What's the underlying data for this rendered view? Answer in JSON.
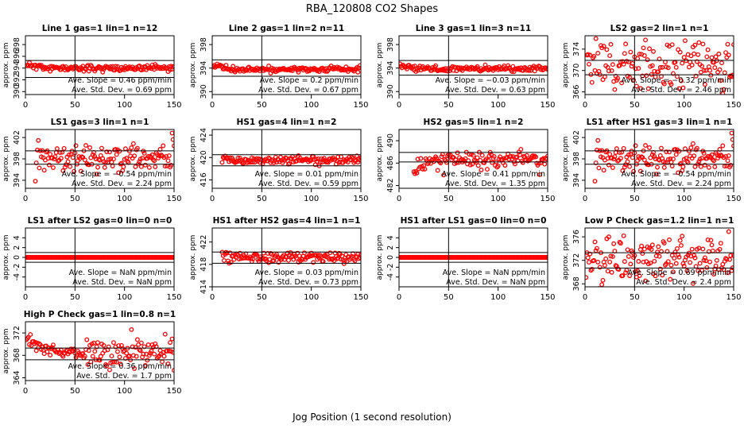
{
  "title": "RBA_120808  CO2 Shapes",
  "xlabel": "Jog Position (1 second resolution)",
  "ylabel": "approx. ppm",
  "colors": {
    "points": "#ff0000",
    "axis": "#000000"
  },
  "slope_label": "Ave. Slope =",
  "slope_unit": "ppm/min",
  "std_label": "Ave. Std. Dev. =",
  "std_unit": "ppm",
  "chart_data": [
    {
      "type": "scatter",
      "title": "Line 1 gas=1 lin=1 n=12",
      "xlim": [
        0,
        150
      ],
      "xticks": [
        0,
        50,
        100,
        150
      ],
      "ylim": [
        389.5,
        399.5
      ],
      "yticks": [
        390,
        392,
        394,
        396,
        398
      ],
      "hlines": [
        392.4,
        395.3
      ],
      "vline": 50,
      "slope": "0.46",
      "std": "0.69",
      "pattern": "flat",
      "base": 394.0,
      "noise": 0.25,
      "start": 1,
      "end": 150,
      "seed": 11
    },
    {
      "type": "scatter",
      "title": "Line 2 gas=1 lin=2 n=11",
      "xlim": [
        0,
        150
      ],
      "xticks": [
        0,
        50,
        100,
        150
      ],
      "ylim": [
        389.5,
        399.5
      ],
      "yticks": [
        390,
        394,
        398
      ],
      "hlines": [
        392.6,
        395.4
      ],
      "vline": 50,
      "slope": "0.2",
      "std": "0.67",
      "pattern": "flat",
      "base": 393.8,
      "noise": 0.25,
      "start": 1,
      "end": 150,
      "seed": 12
    },
    {
      "type": "scatter",
      "title": "Line 3 gas=1 lin=3 n=11",
      "xlim": [
        0,
        150
      ],
      "xticks": [
        0,
        50,
        100,
        150
      ],
      "ylim": [
        389.5,
        399.5
      ],
      "yticks": [
        390,
        394,
        398
      ],
      "hlines": [
        392.8,
        395.3
      ],
      "vline": 50,
      "slope": "−0.03",
      "std": "0.63",
      "pattern": "flat",
      "base": 393.9,
      "noise": 0.25,
      "start": 1,
      "end": 150,
      "seed": 13
    },
    {
      "type": "scatter",
      "title": "LS2 gas=2 lin=1 n=1",
      "xlim": [
        0,
        150
      ],
      "xticks": [
        0,
        50,
        100,
        150
      ],
      "ylim": [
        365.5,
        376.5
      ],
      "yticks": [
        366,
        370,
        374
      ],
      "hlines": [
        369.2,
        371.9
      ],
      "vline": 50,
      "slope": "−0.32",
      "std": "2.46",
      "pattern": "noisy",
      "base": 371.0,
      "noise": 2.3,
      "start": 1,
      "end": 150,
      "seed": 14
    },
    {
      "type": "scatter",
      "title": "LS1 gas=3 lin=1 n=1",
      "xlim": [
        0,
        150
      ],
      "xticks": [
        0,
        50,
        100,
        150
      ],
      "ylim": [
        392.5,
        403.5
      ],
      "yticks": [
        394,
        398,
        402
      ],
      "hlines": [
        397.0,
        399.5
      ],
      "vline": 50,
      "slope": "−0.54",
      "std": "2.24",
      "pattern": "noisy",
      "base": 398.2,
      "noise": 1.2,
      "start": 10,
      "end": 150,
      "seed": 15
    },
    {
      "type": "scatter",
      "title": "HS1 gas=4 lin=1 n=2",
      "xlim": [
        0,
        150
      ],
      "xticks": [
        0,
        50,
        100,
        150
      ],
      "ylim": [
        414.5,
        425
      ],
      "yticks": [
        416,
        420,
        424
      ],
      "hlines": [
        418.5,
        420.5
      ],
      "vline": 50,
      "slope": "0.01",
      "std": "0.59",
      "pattern": "flat",
      "base": 419.5,
      "noise": 0.35,
      "start": 10,
      "end": 150,
      "seed": 16
    },
    {
      "type": "scatter",
      "title": "HS2 gas=5 lin=1 n=2",
      "xlim": [
        0,
        150
      ],
      "xticks": [
        0,
        50,
        100,
        150
      ],
      "ylim": [
        481.5,
        492
      ],
      "yticks": [
        482,
        486,
        490
      ],
      "hlines": [
        486.2,
        487.9
      ],
      "vline": 50,
      "slope": "0.41",
      "std": "1.35",
      "pattern": "rise",
      "base": 486.8,
      "noise": 0.6,
      "start": 15,
      "end": 150,
      "seed": 17
    },
    {
      "type": "scatter",
      "title": "LS1 after HS1 gas=3 lin=1 n=1",
      "xlim": [
        0,
        150
      ],
      "xticks": [
        0,
        50,
        100,
        150
      ],
      "ylim": [
        392.5,
        403.5
      ],
      "yticks": [
        394,
        398,
        402
      ],
      "hlines": [
        397.0,
        399.5
      ],
      "vline": 50,
      "slope": "−0.54",
      "std": "2.24",
      "pattern": "noisy",
      "base": 398.2,
      "noise": 1.2,
      "start": 10,
      "end": 150,
      "seed": 15
    },
    {
      "type": "scatter",
      "title": "LS1 after LS2 gas=0 lin=0 n=0",
      "xlim": [
        0,
        150
      ],
      "xticks": [
        0,
        50,
        100,
        150
      ],
      "ylim": [
        -6,
        6
      ],
      "yticks": [
        -4,
        -2,
        0,
        2,
        4
      ],
      "hlines": [
        -1,
        1
      ],
      "vline": 50,
      "slope": "NaN",
      "std": "NaN",
      "pattern": "zero",
      "base": 0,
      "noise": 0,
      "start": 1,
      "end": 150,
      "seed": 18
    },
    {
      "type": "scatter",
      "title": "HS1 after HS2 gas=4 lin=1 n=1",
      "xlim": [
        0,
        150
      ],
      "xticks": [
        0,
        50,
        100,
        150
      ],
      "ylim": [
        414,
        424.5
      ],
      "yticks": [
        414,
        418,
        422
      ],
      "hlines": [
        418.2,
        420.2
      ],
      "vline": 50,
      "slope": "0.03",
      "std": "0.73",
      "pattern": "flat",
      "base": 419.3,
      "noise": 0.5,
      "start": 10,
      "end": 150,
      "seed": 19
    },
    {
      "type": "scatter",
      "title": "HS1 after LS1 gas=0 lin=0 n=0",
      "xlim": [
        0,
        150
      ],
      "xticks": [
        0,
        50,
        100,
        150
      ],
      "ylim": [
        -6,
        6
      ],
      "yticks": [
        -4,
        -2,
        0,
        2,
        4
      ],
      "hlines": [
        -1,
        1
      ],
      "vline": 50,
      "slope": "NaN",
      "std": "NaN",
      "pattern": "zero",
      "base": 0,
      "noise": 0,
      "start": 1,
      "end": 150,
      "seed": 20
    },
    {
      "type": "scatter",
      "title": "Low P Check gas=1.2 lin=1 n=1",
      "xlim": [
        0,
        150
      ],
      "xticks": [
        0,
        50,
        100,
        150
      ],
      "ylim": [
        367.5,
        377.5
      ],
      "yticks": [
        368,
        372,
        376
      ],
      "hlines": [
        370.7,
        373.3
      ],
      "vline": 50,
      "slope": "0.69",
      "std": "2.4",
      "pattern": "noisy",
      "base": 372.0,
      "noise": 2.0,
      "start": 1,
      "end": 150,
      "seed": 21
    },
    {
      "type": "scatter",
      "title": "High P Check gas=1 lin=0.8 n=1",
      "xlim": [
        0,
        150
      ],
      "xticks": [
        0,
        50,
        100,
        150
      ],
      "ylim": [
        363.5,
        374
      ],
      "yticks": [
        364,
        368,
        372
      ],
      "hlines": [
        367.2,
        369.3
      ],
      "vline": 50,
      "slope": "0.36",
      "std": "1.7",
      "pattern": "decay",
      "base": 368.3,
      "noise": 1.1,
      "start": 1,
      "end": 150,
      "seed": 22
    }
  ]
}
